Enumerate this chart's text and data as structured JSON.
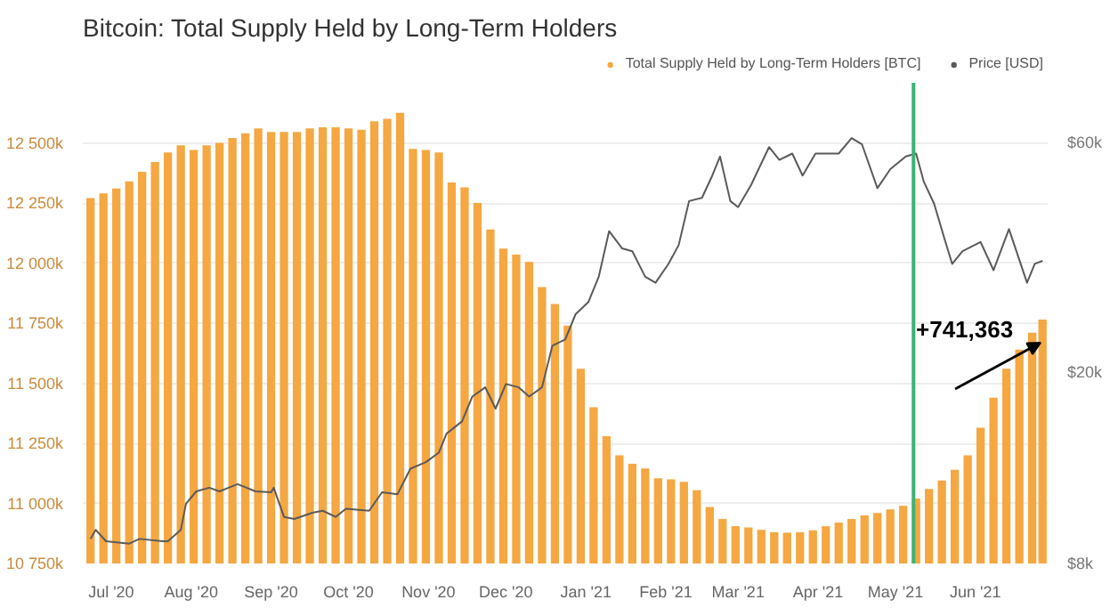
{
  "chart_data": {
    "type": "bar",
    "title": "Bitcoin: Total Supply Held by Long-Term Holders",
    "annotations": [
      "+741,363"
    ],
    "series": [
      {
        "name": "Total Supply Held by Long-Term Holders [BTC]",
        "color": "#f5a742",
        "x": [
          "2020-06-23",
          "2020-06-28",
          "2020-07-03",
          "2020-07-08",
          "2020-07-13",
          "2020-07-18",
          "2020-07-23",
          "2020-07-28",
          "2020-08-02",
          "2020-08-07",
          "2020-08-12",
          "2020-08-17",
          "2020-08-22",
          "2020-08-27",
          "2020-09-01",
          "2020-09-06",
          "2020-09-11",
          "2020-09-16",
          "2020-09-21",
          "2020-09-26",
          "2020-10-01",
          "2020-10-06",
          "2020-10-11",
          "2020-10-16",
          "2020-10-21",
          "2020-10-26",
          "2020-10-31",
          "2020-11-05",
          "2020-11-10",
          "2020-11-15",
          "2020-11-20",
          "2020-11-25",
          "2020-11-30",
          "2020-12-05",
          "2020-12-10",
          "2020-12-15",
          "2020-12-20",
          "2020-12-25",
          "2020-12-30",
          "2021-01-04",
          "2021-01-09",
          "2021-01-14",
          "2021-01-19",
          "2021-01-24",
          "2021-01-29",
          "2021-02-03",
          "2021-02-08",
          "2021-02-13",
          "2021-02-18",
          "2021-02-23",
          "2021-02-28",
          "2021-03-05",
          "2021-03-10",
          "2021-03-15",
          "2021-03-20",
          "2021-03-25",
          "2021-03-30",
          "2021-04-04",
          "2021-04-09",
          "2021-04-14",
          "2021-04-19",
          "2021-04-24",
          "2021-04-29",
          "2021-05-04",
          "2021-05-09",
          "2021-05-14",
          "2021-05-19",
          "2021-05-24",
          "2021-05-29",
          "2021-06-03",
          "2021-06-08",
          "2021-06-13",
          "2021-06-18",
          "2021-06-23",
          "2021-06-27"
        ],
        "values": [
          12270,
          12290,
          12310,
          12340,
          12380,
          12420,
          12460,
          12490,
          12470,
          12490,
          12500,
          12520,
          12540,
          12560,
          12545,
          12545,
          12545,
          12560,
          12565,
          12565,
          12560,
          12555,
          12590,
          12600,
          12625,
          12475,
          12470,
          12460,
          12335,
          12315,
          12250,
          12140,
          12060,
          12035,
          12005,
          11900,
          11830,
          11740,
          11560,
          11400,
          11280,
          11200,
          11165,
          11145,
          11105,
          11100,
          11090,
          11055,
          10985,
          10935,
          10905,
          10900,
          10890,
          10880,
          10878,
          10880,
          10888,
          10905,
          10920,
          10935,
          10950,
          10960,
          10975,
          10990,
          11020,
          11060,
          11095,
          11140,
          11200,
          11315,
          11440,
          11560,
          11640,
          11710,
          11765
        ]
      },
      {
        "name": "Price [USD]",
        "type": "line",
        "axis": "y2",
        "color": "#5a5a5a",
        "line_style": "solid",
        "x": [
          "2020-06-23",
          "2020-06-25",
          "2020-06-29",
          "2020-07-08",
          "2020-07-12",
          "2020-07-21",
          "2020-07-23",
          "2020-07-28",
          "2020-07-30",
          "2020-08-03",
          "2020-08-08",
          "2020-08-12",
          "2020-08-19",
          "2020-08-26",
          "2020-09-01",
          "2020-09-02",
          "2020-09-06",
          "2020-09-10",
          "2020-09-17",
          "2020-09-21",
          "2020-09-26",
          "2020-09-30",
          "2020-10-09",
          "2020-10-14",
          "2020-10-20",
          "2020-10-25",
          "2020-10-31",
          "2020-11-05",
          "2020-11-08",
          "2020-11-14",
          "2020-11-18",
          "2020-11-23",
          "2020-11-27",
          "2020-12-01",
          "2020-12-06",
          "2020-12-10",
          "2020-12-15",
          "2020-12-19",
          "2020-12-24",
          "2020-12-28",
          "2021-01-02",
          "2021-01-06",
          "2021-01-10",
          "2021-01-15",
          "2021-01-19",
          "2021-01-24",
          "2021-01-28",
          "2021-02-02",
          "2021-02-06",
          "2021-02-10",
          "2021-02-15",
          "2021-02-19",
          "2021-02-22",
          "2021-02-26",
          "2021-03-01",
          "2021-03-06",
          "2021-03-13",
          "2021-03-17",
          "2021-03-22",
          "2021-03-26",
          "2021-03-31",
          "2021-04-09",
          "2021-04-14",
          "2021-04-18",
          "2021-04-24",
          "2021-04-29",
          "2021-05-05",
          "2021-05-09",
          "2021-05-12",
          "2021-05-16",
          "2021-05-20",
          "2021-05-23",
          "2021-05-27",
          "2021-06-03",
          "2021-06-08",
          "2021-06-14",
          "2021-06-21",
          "2021-06-24",
          "2021-06-27"
        ],
        "values": [
          9000,
          9400,
          8900,
          8800,
          9000,
          8900,
          8900,
          9400,
          10650,
          11300,
          11500,
          11300,
          11700,
          11300,
          11250,
          11500,
          10000,
          9900,
          10200,
          10300,
          10000,
          10400,
          10300,
          11250,
          11150,
          12600,
          13000,
          13600,
          14900,
          15800,
          17800,
          18600,
          16800,
          18900,
          18600,
          17800,
          18600,
          22700,
          23400,
          26400,
          28000,
          31600,
          39300,
          36200,
          35700,
          31600,
          30700,
          33600,
          36800,
          45400,
          46100,
          51300,
          56200,
          45400,
          44100,
          49000,
          58800,
          55300,
          57000,
          51300,
          57000,
          57000,
          61400,
          59600,
          48300,
          52900,
          56200,
          57000,
          49800,
          44800,
          37900,
          33600,
          35700,
          37300,
          32600,
          39700,
          30700,
          33600,
          34100
        ]
      }
    ],
    "xlim": [
      "2020-06-20",
      "2021-06-29"
    ],
    "xticks": [
      {
        "value": "2020-07-01",
        "label": "Jul '20"
      },
      {
        "value": "2020-08-01",
        "label": "Aug '20"
      },
      {
        "value": "2020-09-01",
        "label": "Sep '20"
      },
      {
        "value": "2020-10-01",
        "label": "Oct '20"
      },
      {
        "value": "2020-11-01",
        "label": "Nov '20"
      },
      {
        "value": "2020-12-01",
        "label": "Dec '20"
      },
      {
        "value": "2021-01-01",
        "label": "Jan '21"
      },
      {
        "value": "2021-02-01",
        "label": "Feb '21"
      },
      {
        "value": "2021-03-01",
        "label": "Mar '21"
      },
      {
        "value": "2021-04-01",
        "label": "Apr '21"
      },
      {
        "value": "2021-05-01",
        "label": "May '21"
      },
      {
        "value": "2021-06-01",
        "label": "Jun '21"
      }
    ],
    "ylim": [
      10750,
      12750
    ],
    "yticks": [
      {
        "value": 10750,
        "label": "10 750k"
      },
      {
        "value": 11000,
        "label": "11 000k"
      },
      {
        "value": 11250,
        "label": "11 250k"
      },
      {
        "value": 11500,
        "label": "11 500k"
      },
      {
        "value": 11750,
        "label": "11 750k"
      },
      {
        "value": 12000,
        "label": "12 000k"
      },
      {
        "value": 12250,
        "label": "12 250k"
      },
      {
        "value": 12500,
        "label": "12 500k"
      }
    ],
    "y2lim": [
      8000,
      80000
    ],
    "y2ticks": [
      {
        "value": 8000,
        "label": "$8k"
      },
      {
        "value": 20000,
        "label": "$20k"
      },
      {
        "value": 60000,
        "label": "$60k"
      }
    ],
    "log": "y2",
    "ref_lines": [
      {
        "axis": "x",
        "value": "2021-05-08",
        "color": "#3cb371"
      }
    ],
    "grid": "y",
    "legend": "top right"
  }
}
